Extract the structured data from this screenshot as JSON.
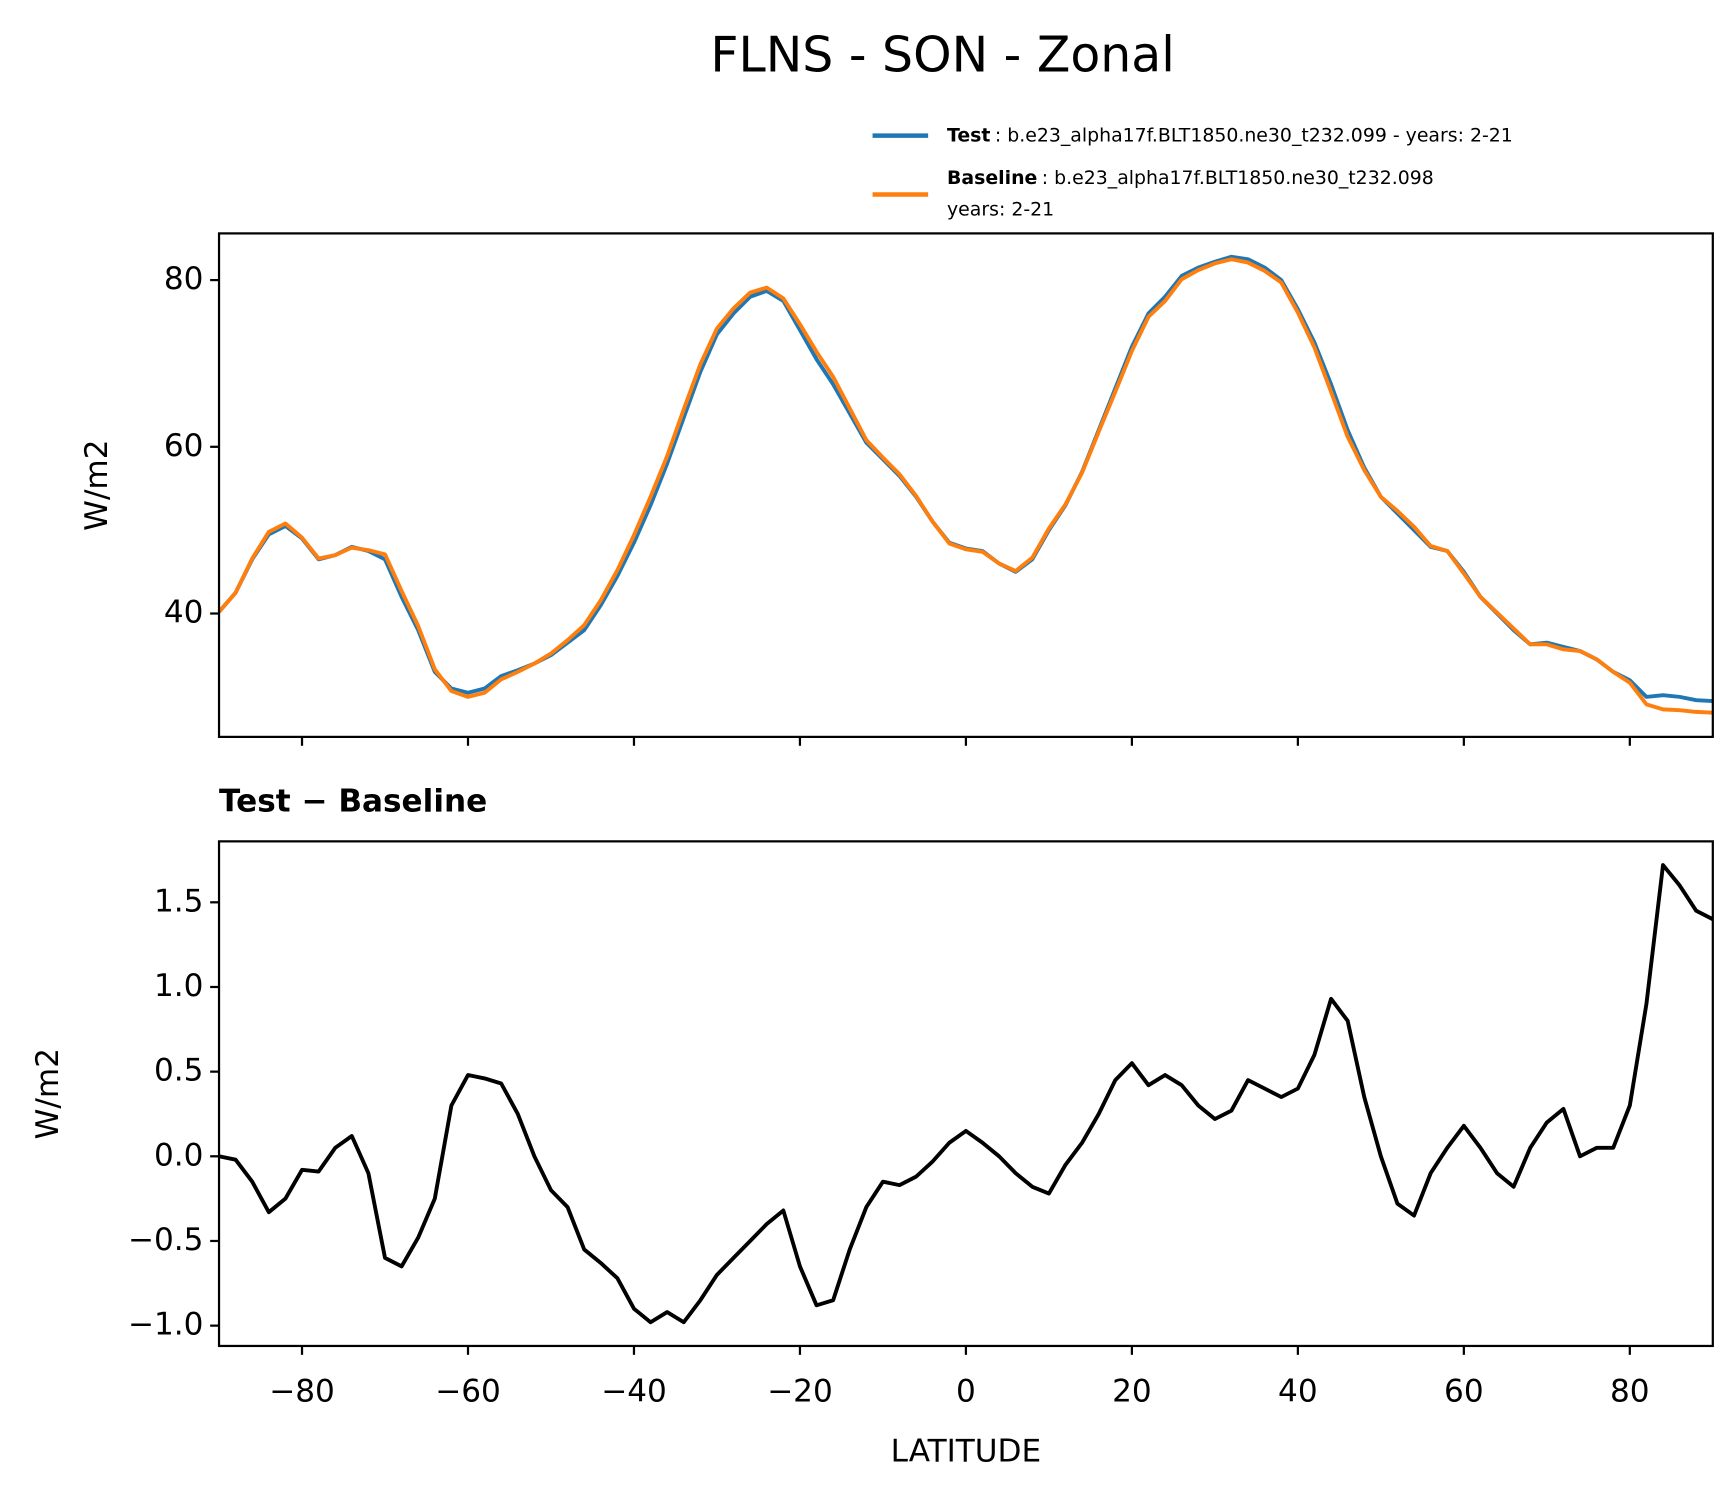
{
  "title": "FLNS - SON - Zonal",
  "chart_data": [
    {
      "type": "line",
      "ylabel": "W/m2",
      "x": [
        -90,
        -88,
        -86,
        -84,
        -82,
        -80,
        -78,
        -76,
        -74,
        -72,
        -70,
        -68,
        -66,
        -64,
        -62,
        -60,
        -58,
        -56,
        -54,
        -52,
        -50,
        -48,
        -46,
        -44,
        -42,
        -40,
        -38,
        -36,
        -34,
        -32,
        -30,
        -28,
        -26,
        -24,
        -22,
        -20,
        -18,
        -16,
        -14,
        -12,
        -10,
        -8,
        -6,
        -4,
        -2,
        0,
        2,
        4,
        6,
        8,
        10,
        12,
        14,
        16,
        18,
        20,
        22,
        24,
        26,
        28,
        30,
        32,
        34,
        36,
        38,
        40,
        42,
        44,
        46,
        48,
        50,
        52,
        54,
        56,
        58,
        60,
        62,
        64,
        66,
        68,
        70,
        72,
        74,
        76,
        78,
        80,
        82,
        84,
        86,
        88,
        90
      ],
      "series": [
        {
          "name": "Test",
          "description": [
            ": b.e23_alpha17f.BLT1850.ne30_t232.099 - years: 2-21"
          ],
          "color": "#1f77b4",
          "values": [
            40.2,
            42.5,
            46.5,
            49.5,
            50.5,
            49,
            46.5,
            47,
            48,
            47.5,
            46.5,
            42,
            38,
            33,
            31,
            30.5,
            31,
            32.5,
            33.2,
            34,
            35,
            36.5,
            38,
            41,
            44.5,
            48.5,
            53,
            58,
            63.5,
            69,
            73.5,
            76,
            78,
            78.7,
            77.5,
            74,
            70.5,
            67.5,
            64,
            60.5,
            58.5,
            56.5,
            54,
            51,
            48.5,
            47.8,
            47.5,
            46,
            45,
            46.5,
            50,
            53,
            57,
            62,
            67,
            72,
            76,
            78,
            80.5,
            81.5,
            82.2,
            82.8,
            82.5,
            81.5,
            80,
            76.5,
            72.5,
            67.5,
            62,
            57.5,
            54,
            52,
            50,
            48,
            47.5,
            45,
            42,
            40,
            38,
            36.3,
            36.5,
            36,
            35.5,
            34.5,
            33,
            32,
            30,
            30.2,
            30,
            29.6,
            29.5
          ]
        },
        {
          "name": "Baseline",
          "description": [
            ": b.e23_alpha17f.BLT1850.ne30_t232.098",
            "years: 2-21"
          ],
          "color": "#ff7f0e",
          "values": [
            40.2,
            42.5,
            46.6,
            49.8,
            50.8,
            49.1,
            46.6,
            47.0,
            47.9,
            47.6,
            47.1,
            42.7,
            38.5,
            33.3,
            30.7,
            30.0,
            30.5,
            32.1,
            33.0,
            34.0,
            35.2,
            36.8,
            38.6,
            41.6,
            45.2,
            49.4,
            54.0,
            58.9,
            64.5,
            69.9,
            74.2,
            76.6,
            78.5,
            79.1,
            77.8,
            74.7,
            71.4,
            68.4,
            64.6,
            60.8,
            58.7,
            56.7,
            54.1,
            51.0,
            48.4,
            47.7,
            47.4,
            46.0,
            45.1,
            46.7,
            50.2,
            53.1,
            56.9,
            61.8,
            66.6,
            71.5,
            75.6,
            77.5,
            80.1,
            81.2,
            82.0,
            82.5,
            82.1,
            81.1,
            79.7,
            76.1,
            71.9,
            66.6,
            61.2,
            57.2,
            54.0,
            52.3,
            50.4,
            48.1,
            47.5,
            44.8,
            42.0,
            40.1,
            38.2,
            36.3,
            36.3,
            35.7,
            35.5,
            34.5,
            33.0,
            31.7,
            29.1,
            28.5,
            28.4,
            28.2,
            28.1
          ]
        }
      ],
      "xlim": [
        -90,
        90
      ],
      "ylim": [
        25.2,
        85.6
      ],
      "yticks": [
        40,
        60,
        80
      ]
    },
    {
      "type": "line",
      "title": "Test − Baseline",
      "ylabel": "W/m2",
      "xlabel": "LATITUDE",
      "x": [
        -90,
        -88,
        -86,
        -84,
        -82,
        -80,
        -78,
        -76,
        -74,
        -72,
        -70,
        -68,
        -66,
        -64,
        -62,
        -60,
        -58,
        -56,
        -54,
        -52,
        -50,
        -48,
        -46,
        -44,
        -42,
        -40,
        -38,
        -36,
        -34,
        -32,
        -30,
        -28,
        -26,
        -24,
        -22,
        -20,
        -18,
        -16,
        -14,
        -12,
        -10,
        -8,
        -6,
        -4,
        -2,
        0,
        2,
        4,
        6,
        8,
        10,
        12,
        14,
        16,
        18,
        20,
        22,
        24,
        26,
        28,
        30,
        32,
        34,
        36,
        38,
        40,
        42,
        44,
        46,
        48,
        50,
        52,
        54,
        56,
        58,
        60,
        62,
        64,
        66,
        68,
        70,
        72,
        74,
        76,
        78,
        80,
        82,
        84,
        86,
        88,
        90
      ],
      "series": [
        {
          "color": "#000000",
          "values": [
            0.0,
            -0.02,
            -0.15,
            -0.33,
            -0.25,
            -0.08,
            -0.09,
            0.05,
            0.12,
            -0.1,
            -0.6,
            -0.65,
            -0.48,
            -0.25,
            0.3,
            0.48,
            0.46,
            0.43,
            0.25,
            0.0,
            -0.2,
            -0.3,
            -0.55,
            -0.63,
            -0.72,
            -0.9,
            -0.98,
            -0.92,
            -0.98,
            -0.85,
            -0.7,
            -0.6,
            -0.5,
            -0.4,
            -0.32,
            -0.65,
            -0.88,
            -0.85,
            -0.55,
            -0.3,
            -0.15,
            -0.17,
            -0.12,
            -0.03,
            0.08,
            0.15,
            0.08,
            0.0,
            -0.1,
            -0.18,
            -0.22,
            -0.05,
            0.08,
            0.25,
            0.45,
            0.55,
            0.42,
            0.48,
            0.42,
            0.3,
            0.22,
            0.27,
            0.45,
            0.4,
            0.35,
            0.4,
            0.6,
            0.93,
            0.8,
            0.35,
            0.0,
            -0.28,
            -0.35,
            -0.1,
            0.05,
            0.18,
            0.05,
            -0.1,
            -0.18,
            0.05,
            0.2,
            0.28,
            0.0,
            0.05,
            0.05,
            0.3,
            0.9,
            1.72,
            1.6,
            1.45,
            1.4
          ]
        }
      ],
      "xlim": [
        -90,
        90
      ],
      "xticks": [
        {
          "value": -80,
          "label": "−80"
        },
        {
          "value": -60,
          "label": "−60"
        },
        {
          "value": -40,
          "label": "−40"
        },
        {
          "value": -20,
          "label": "−20"
        },
        0,
        20,
        40,
        60,
        80
      ],
      "ylim": [
        -1.12,
        1.86
      ],
      "yticks": [
        {
          "value": -1.0,
          "label": "−1.0"
        },
        {
          "value": -0.5,
          "label": "−0.5"
        },
        {
          "value": 0.0,
          "label": "0.0"
        },
        0.5,
        {
          "value": 1.0,
          "label": "1.0"
        },
        1.5
      ]
    }
  ]
}
